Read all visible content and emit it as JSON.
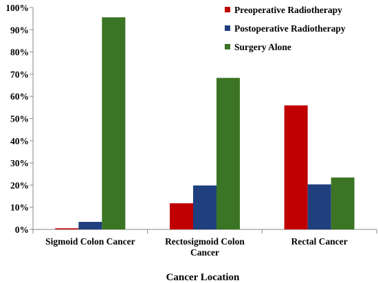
{
  "chart_data": {
    "type": "bar",
    "title": "",
    "xlabel": "Cancer Location",
    "ylabel": "",
    "ylim": [
      0,
      100
    ],
    "yticks": [
      "0%",
      "10%",
      "20%",
      "30%",
      "40%",
      "50%",
      "60%",
      "70%",
      "80%",
      "90%",
      "100%"
    ],
    "categories": [
      [
        "Sigmoid Colon Cancer"
      ],
      [
        "Rectosigmoid Colon",
        "Cancer"
      ],
      [
        "Rectal Cancer"
      ]
    ],
    "series": [
      {
        "name": "Preoperative Radiotherapy",
        "color": "#c00000",
        "values": [
          0.5,
          11.8,
          55.9
        ]
      },
      {
        "name": "Postoperative Radiotherapy",
        "color": "#1f3f7f",
        "values": [
          3.4,
          19.8,
          20.3
        ]
      },
      {
        "name": "Surgery Alone",
        "color": "#3a7424",
        "values": [
          95.6,
          68.3,
          23.4
        ]
      }
    ],
    "legend_position": "top-right",
    "grid": false
  }
}
